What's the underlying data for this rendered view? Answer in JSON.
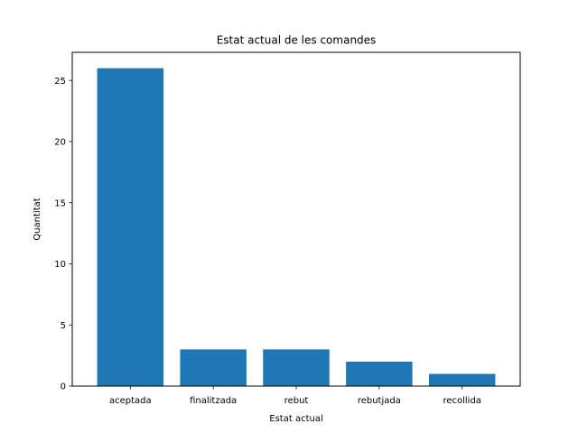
{
  "chart_data": {
    "type": "bar",
    "title": "Estat actual de les comandes",
    "xlabel": "Estat actual",
    "ylabel": "Quantitat",
    "categories": [
      "aceptada",
      "finalitzada",
      "rebut",
      "rebutjada",
      "recollida"
    ],
    "values": [
      26,
      3,
      3,
      2,
      1
    ],
    "ylim": [
      0,
      27.3
    ],
    "yticks": [
      0,
      5,
      10,
      15,
      20,
      25
    ],
    "grid": false,
    "bar_color": "#1f77b4"
  }
}
